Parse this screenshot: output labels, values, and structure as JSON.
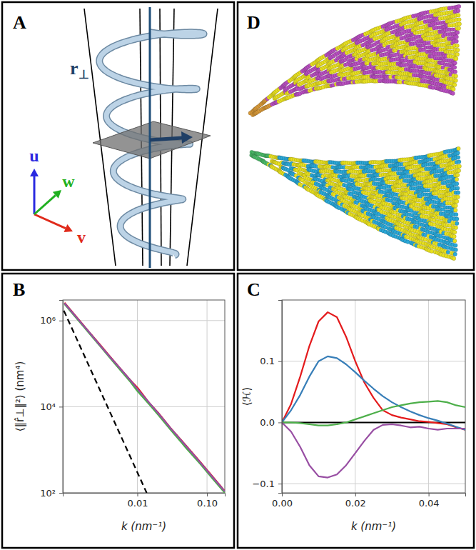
{
  "chart_data": [
    {
      "type": "line",
      "panel_label": "B",
      "log": true,
      "grid": true,
      "x_label": "k (nm⁻¹)",
      "y_label": "⟨‖r̂⊥‖²⟩ (nm⁴)",
      "xlim": [
        0.00085,
        0.18
      ],
      "ylim": [
        100,
        3000000
      ],
      "xticks": [
        0.01,
        {
          "value": 0.1,
          "label": "0.10"
        }
      ],
      "yticks": [
        {
          "value": 100,
          "label": "10²"
        },
        {
          "value": 10000,
          "label": "10⁴"
        },
        {
          "value": 1000000,
          "label": "10⁶"
        }
      ],
      "x": [
        0.0009,
        0.0012,
        0.0016,
        0.002,
        0.003,
        0.004,
        0.006,
        0.008,
        0.01,
        0.015,
        0.02,
        0.03,
        0.05,
        0.08,
        0.12,
        0.18
      ],
      "series": [
        {
          "color": "#e41a1c",
          "values": [
            2600000,
            1500000,
            860000,
            560000,
            260000,
            150000,
            70000,
            41000,
            28000,
            12000,
            7200,
            3200,
            1250,
            520,
            240,
            110
          ]
        },
        {
          "color": "#377eb8",
          "values": [
            2500000,
            1440000,
            830000,
            550000,
            250000,
            145000,
            68000,
            40000,
            25000,
            11800,
            6900,
            3100,
            1200,
            500,
            230,
            106
          ]
        },
        {
          "color": "#4daf4a",
          "values": [
            2400000,
            1380000,
            800000,
            520000,
            240000,
            138000,
            64000,
            37000,
            23000,
            11000,
            6400,
            2900,
            1100,
            470,
            215,
            100
          ]
        },
        {
          "color": "#984ea3",
          "values": [
            2500000,
            1450000,
            840000,
            550000,
            250000,
            146000,
            69000,
            40000,
            26000,
            12000,
            7000,
            3150,
            1220,
            505,
            232,
            108
          ]
        },
        {
          "color": "#000000",
          "line_style": "dashed",
          "x": [
            0.00088,
            0.0136
          ],
          "values": [
            1700000,
            100
          ]
        }
      ]
    },
    {
      "type": "line",
      "panel_label": "C",
      "grid": true,
      "x_label": "k (nm⁻¹)",
      "y_label": "⟨ℋ⟩",
      "xlim": [
        0,
        0.05
      ],
      "ylim": [
        -0.115,
        0.2
      ],
      "xticks": [
        {
          "value": 0,
          "label": "0.00"
        },
        {
          "value": 0.02,
          "label": "0.02"
        },
        {
          "value": 0.04,
          "label": "0.04"
        }
      ],
      "yticks": [
        {
          "value": -0.1,
          "label": "−0.1"
        },
        {
          "value": 0,
          "label": "0.0"
        },
        0.1
      ],
      "hline": 0,
      "x": [
        0,
        0.0025,
        0.005,
        0.0075,
        0.01,
        0.0125,
        0.015,
        0.0175,
        0.02,
        0.0225,
        0.025,
        0.0275,
        0.03,
        0.0325,
        0.035,
        0.0375,
        0.04,
        0.0425,
        0.045,
        0.0475,
        0.05
      ],
      "series": [
        {
          "color": "#e41a1c",
          "values": [
            0,
            0.03,
            0.075,
            0.125,
            0.165,
            0.18,
            0.172,
            0.14,
            0.1,
            0.065,
            0.04,
            0.02,
            0.012,
            0.008,
            0.005,
            0.002,
            0.001,
            -0.001,
            -0.003,
            -0.008,
            -0.012
          ]
        },
        {
          "color": "#377eb8",
          "values": [
            0,
            0.02,
            0.045,
            0.075,
            0.1,
            0.108,
            0.105,
            0.095,
            0.082,
            0.068,
            0.055,
            0.043,
            0.033,
            0.025,
            0.018,
            0.012,
            0.007,
            0.003,
            -0.002,
            -0.007,
            -0.012
          ]
        },
        {
          "color": "#4daf4a",
          "values": [
            0,
            0,
            -0.001,
            -0.003,
            -0.005,
            -0.005,
            -0.003,
            0,
            0.005,
            0.01,
            0.015,
            0.02,
            0.025,
            0.028,
            0.031,
            0.033,
            0.034,
            0.035,
            0.033,
            0.028,
            0.025
          ]
        },
        {
          "color": "#984ea3",
          "values": [
            0,
            -0.015,
            -0.04,
            -0.07,
            -0.088,
            -0.09,
            -0.085,
            -0.07,
            -0.05,
            -0.03,
            -0.012,
            -0.004,
            -0.003,
            -0.005,
            -0.008,
            -0.007,
            -0.01,
            -0.012,
            -0.01,
            -0.01,
            -0.01
          ]
        }
      ]
    }
  ],
  "diagram": {
    "panel_a": {
      "panel_label": "A",
      "vector": {
        "symbol": "r",
        "subscript": "⊥"
      },
      "axes": [
        {
          "label": "u",
          "color": "#2a2ae0"
        },
        {
          "label": "v",
          "color": "#e02a1a"
        },
        {
          "label": "w",
          "color": "#20b020"
        }
      ]
    },
    "panel_d": {
      "panel_label": "D"
    }
  }
}
